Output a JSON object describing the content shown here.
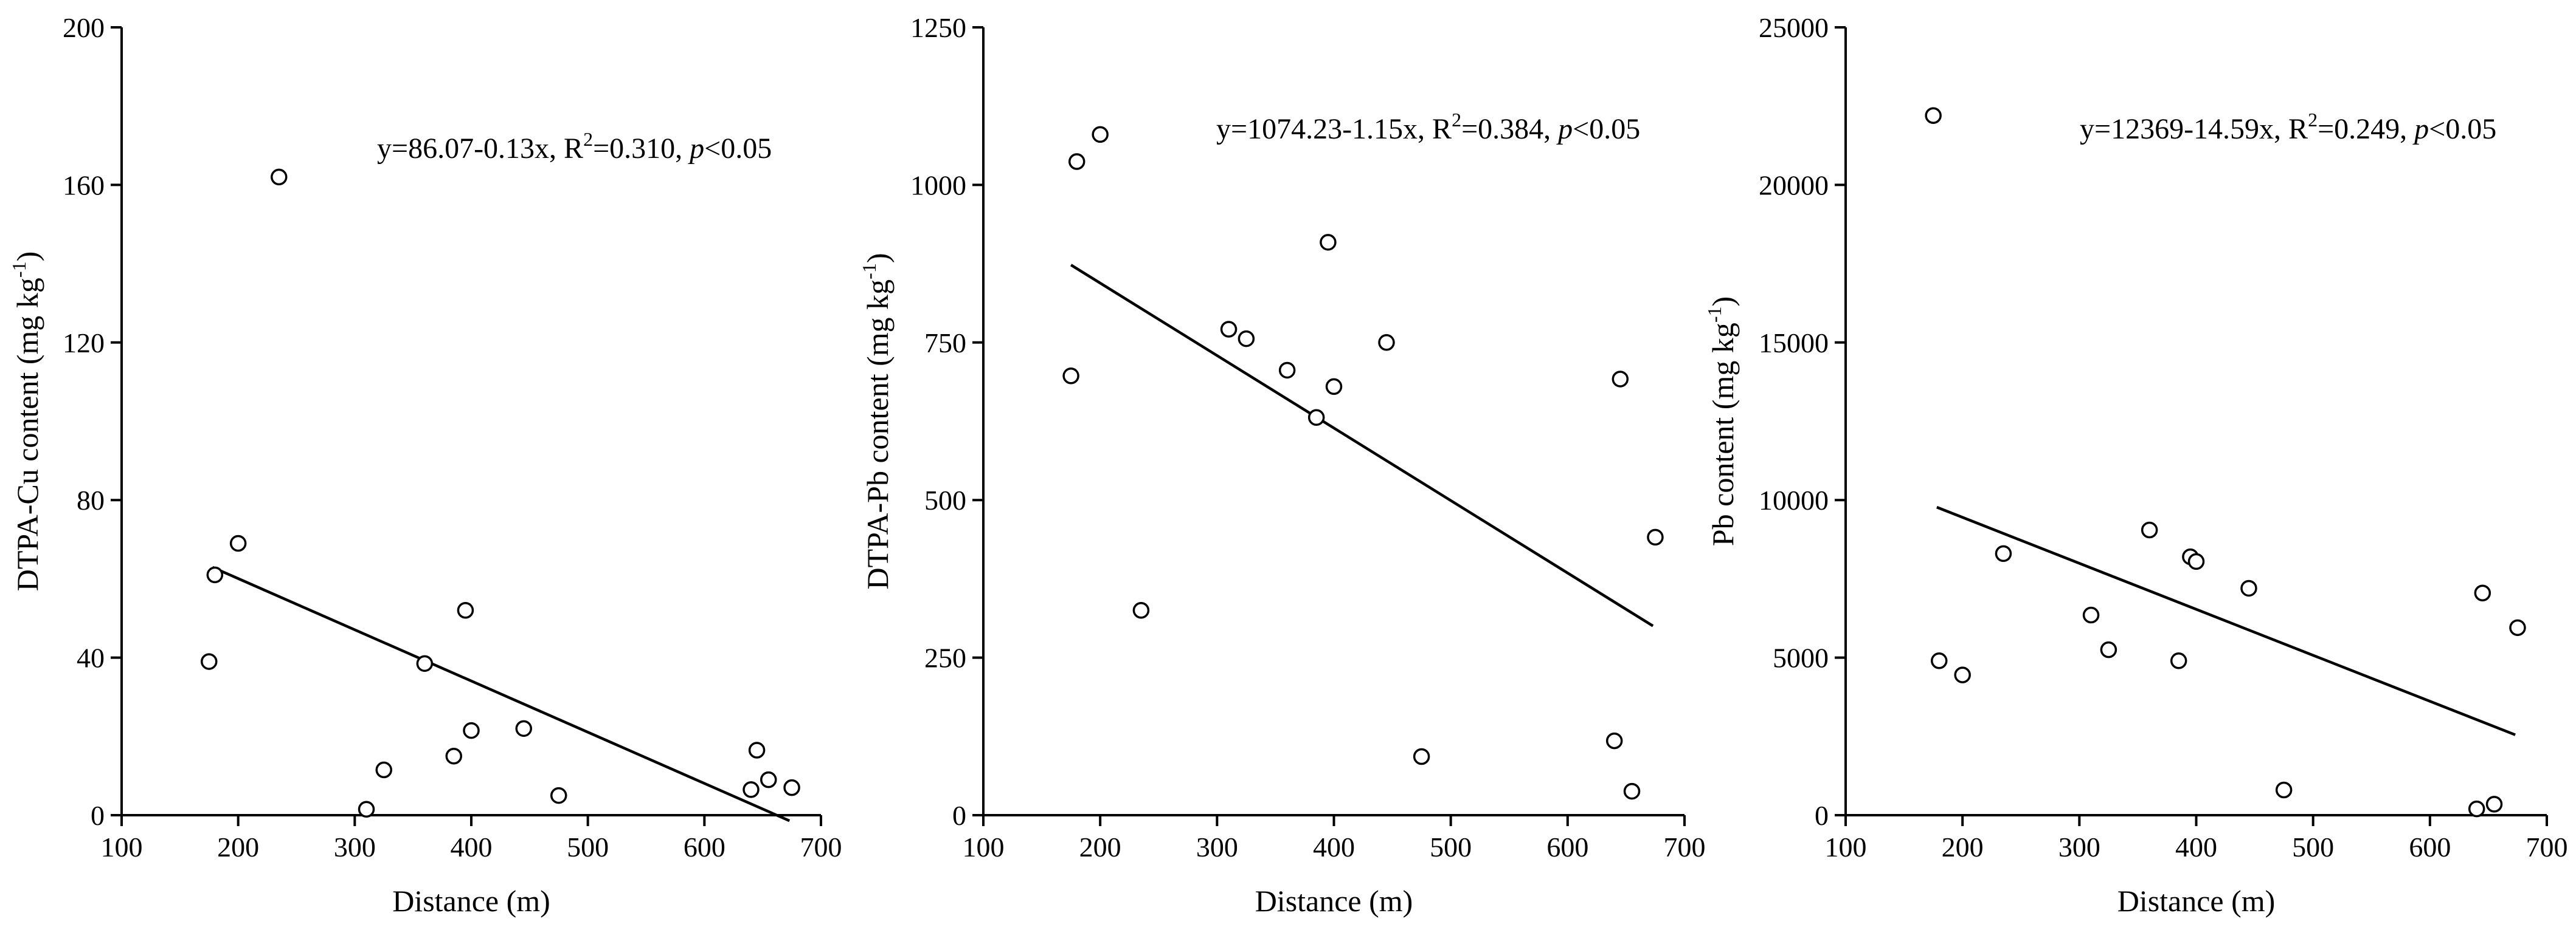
{
  "chart_data": [
    {
      "type": "scatter",
      "x": [
        175,
        180,
        200,
        235,
        310,
        325,
        360,
        385,
        395,
        400,
        445,
        475,
        640,
        645,
        655,
        675
      ],
      "y": [
        39,
        61,
        69,
        162,
        1.5,
        11.5,
        38.5,
        15,
        52,
        21.5,
        22,
        5,
        6.5,
        16.5,
        9,
        7
      ],
      "fit": {
        "intercept": 86.07,
        "slope": -0.13,
        "x_range": [
          178,
          673
        ]
      },
      "xlabel": "Distance (m)",
      "ylabel_main": "DTPA-Cu content (mg kg",
      "ylabel_sup": "-1",
      "ylabel_end": ")",
      "xlim": [
        100,
        700
      ],
      "ylim": [
        0,
        200
      ],
      "xticks": [
        100,
        200,
        300,
        400,
        500,
        600,
        700
      ],
      "yticks": [
        0,
        40,
        80,
        120,
        160,
        200
      ],
      "equation": {
        "pre": "y=86.07-0.13x, R",
        "sup": "2",
        "mid": "=0.310, ",
        "italic": "p",
        "post": "<0.05"
      }
    },
    {
      "type": "scatter",
      "x": [
        175,
        180,
        200,
        235,
        310,
        325,
        360,
        385,
        395,
        400,
        445,
        475,
        640,
        645,
        655,
        675
      ],
      "y": [
        697,
        1037,
        1080,
        325,
        771,
        756,
        706,
        631,
        909,
        680,
        750,
        93,
        118,
        692,
        38,
        441
      ],
      "fit": {
        "intercept": 1074.23,
        "slope": -1.15,
        "x_range": [
          175,
          673
        ]
      },
      "xlabel": "Distance (m)",
      "ylabel_main": "DTPA-Pb content (mg kg",
      "ylabel_sup": "-1",
      "ylabel_end": ")",
      "xlim": [
        100,
        700
      ],
      "ylim": [
        0,
        1250
      ],
      "xticks": [
        100,
        200,
        300,
        400,
        500,
        600,
        700
      ],
      "yticks": [
        0,
        250,
        500,
        750,
        1000,
        1250
      ],
      "equation": {
        "pre": "y=1074.23-1.15x, R",
        "sup": "2",
        "mid": "=0.384, ",
        "italic": "p",
        "post": "<0.05"
      }
    },
    {
      "type": "scatter",
      "x": [
        175,
        180,
        200,
        235,
        310,
        325,
        360,
        385,
        395,
        400,
        445,
        475,
        640,
        645,
        655,
        675
      ],
      "y": [
        22200,
        4900,
        4450,
        8300,
        6350,
        5250,
        9050,
        4900,
        8200,
        8050,
        7200,
        800,
        200,
        7050,
        350,
        5950
      ],
      "fit": {
        "intercept": 12369,
        "slope": -14.59,
        "x_range": [
          178,
          673
        ]
      },
      "xlabel": "Distance (m)",
      "ylabel_main": "Pb content (mg kg",
      "ylabel_sup": "-1",
      "ylabel_end": ")",
      "xlim": [
        100,
        700
      ],
      "ylim": [
        0,
        25000
      ],
      "xticks": [
        100,
        200,
        300,
        400,
        500,
        600,
        700
      ],
      "yticks": [
        0,
        5000,
        10000,
        15000,
        20000,
        25000
      ],
      "equation": {
        "pre": "y=12369-14.59x, R",
        "sup": "2",
        "mid": "=0.249, ",
        "italic": "p",
        "post": "<0.05"
      }
    }
  ]
}
